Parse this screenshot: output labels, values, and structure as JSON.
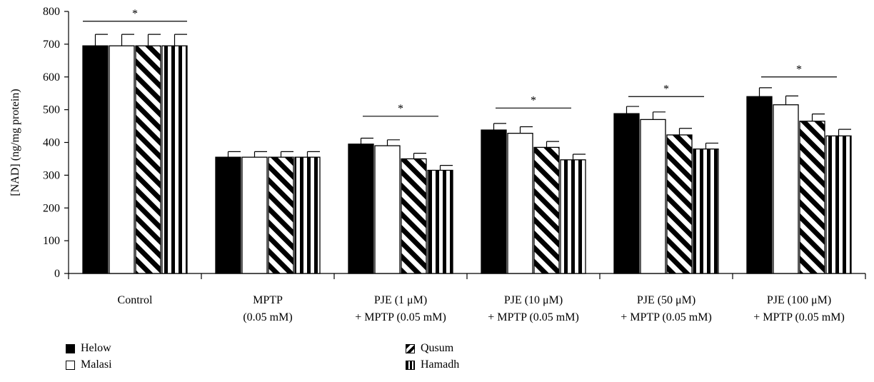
{
  "chart_data": {
    "type": "bar",
    "ylabel": "[NAD] (ng/mg protein)",
    "xlabel": "",
    "ylim": [
      0,
      800
    ],
    "yticks": [
      0,
      100,
      200,
      300,
      400,
      500,
      600,
      700,
      800
    ],
    "grid": false,
    "legend_position": "bottom-left",
    "categories": [
      [
        "Control"
      ],
      [
        "MPTP",
        "(0.05 mM)"
      ],
      [
        "PJE (1 μM)",
        "+ MPTP (0.05 mM)"
      ],
      [
        "PJE (10 μM)",
        "+ MPTP (0.05 mM)"
      ],
      [
        "PJE (50 μM)",
        "+ MPTP (0.05 mM)"
      ],
      [
        "PJE (100 μM)",
        "+ MPTP (0.05 mM)"
      ]
    ],
    "series": [
      {
        "name": "Helow",
        "pattern": "solid-black",
        "values": [
          695,
          355,
          395,
          438,
          488,
          540
        ],
        "errors": [
          35,
          17,
          18,
          20,
          22,
          27
        ]
      },
      {
        "name": "Malasi",
        "pattern": "white",
        "values": [
          695,
          355,
          390,
          428,
          470,
          515
        ],
        "errors": [
          35,
          17,
          18,
          20,
          23,
          27
        ]
      },
      {
        "name": "Qusum",
        "pattern": "diagonal-stripes",
        "values": [
          695,
          355,
          350,
          385,
          423,
          465
        ],
        "errors": [
          35,
          17,
          17,
          18,
          20,
          22
        ]
      },
      {
        "name": "Hamadh",
        "pattern": "vertical-stripes",
        "values": [
          695,
          355,
          315,
          347,
          380,
          420
        ],
        "errors": [
          35,
          17,
          15,
          17,
          18,
          20
        ]
      }
    ],
    "significance": [
      {
        "category_index": 0,
        "label": "*",
        "level": 770
      },
      {
        "category_index": 2,
        "label": "*",
        "level": 480
      },
      {
        "category_index": 3,
        "label": "*",
        "level": 505
      },
      {
        "category_index": 4,
        "label": "*",
        "level": 540
      },
      {
        "category_index": 5,
        "label": "*",
        "level": 600
      }
    ]
  },
  "legend": {
    "items": [
      {
        "label": "Helow",
        "pattern": "solid-black"
      },
      {
        "label": "Malasi",
        "pattern": "white"
      },
      {
        "label": "Qusum",
        "pattern": "diagonal-stripes"
      },
      {
        "label": "Hamadh",
        "pattern": "vertical-stripes"
      }
    ]
  }
}
